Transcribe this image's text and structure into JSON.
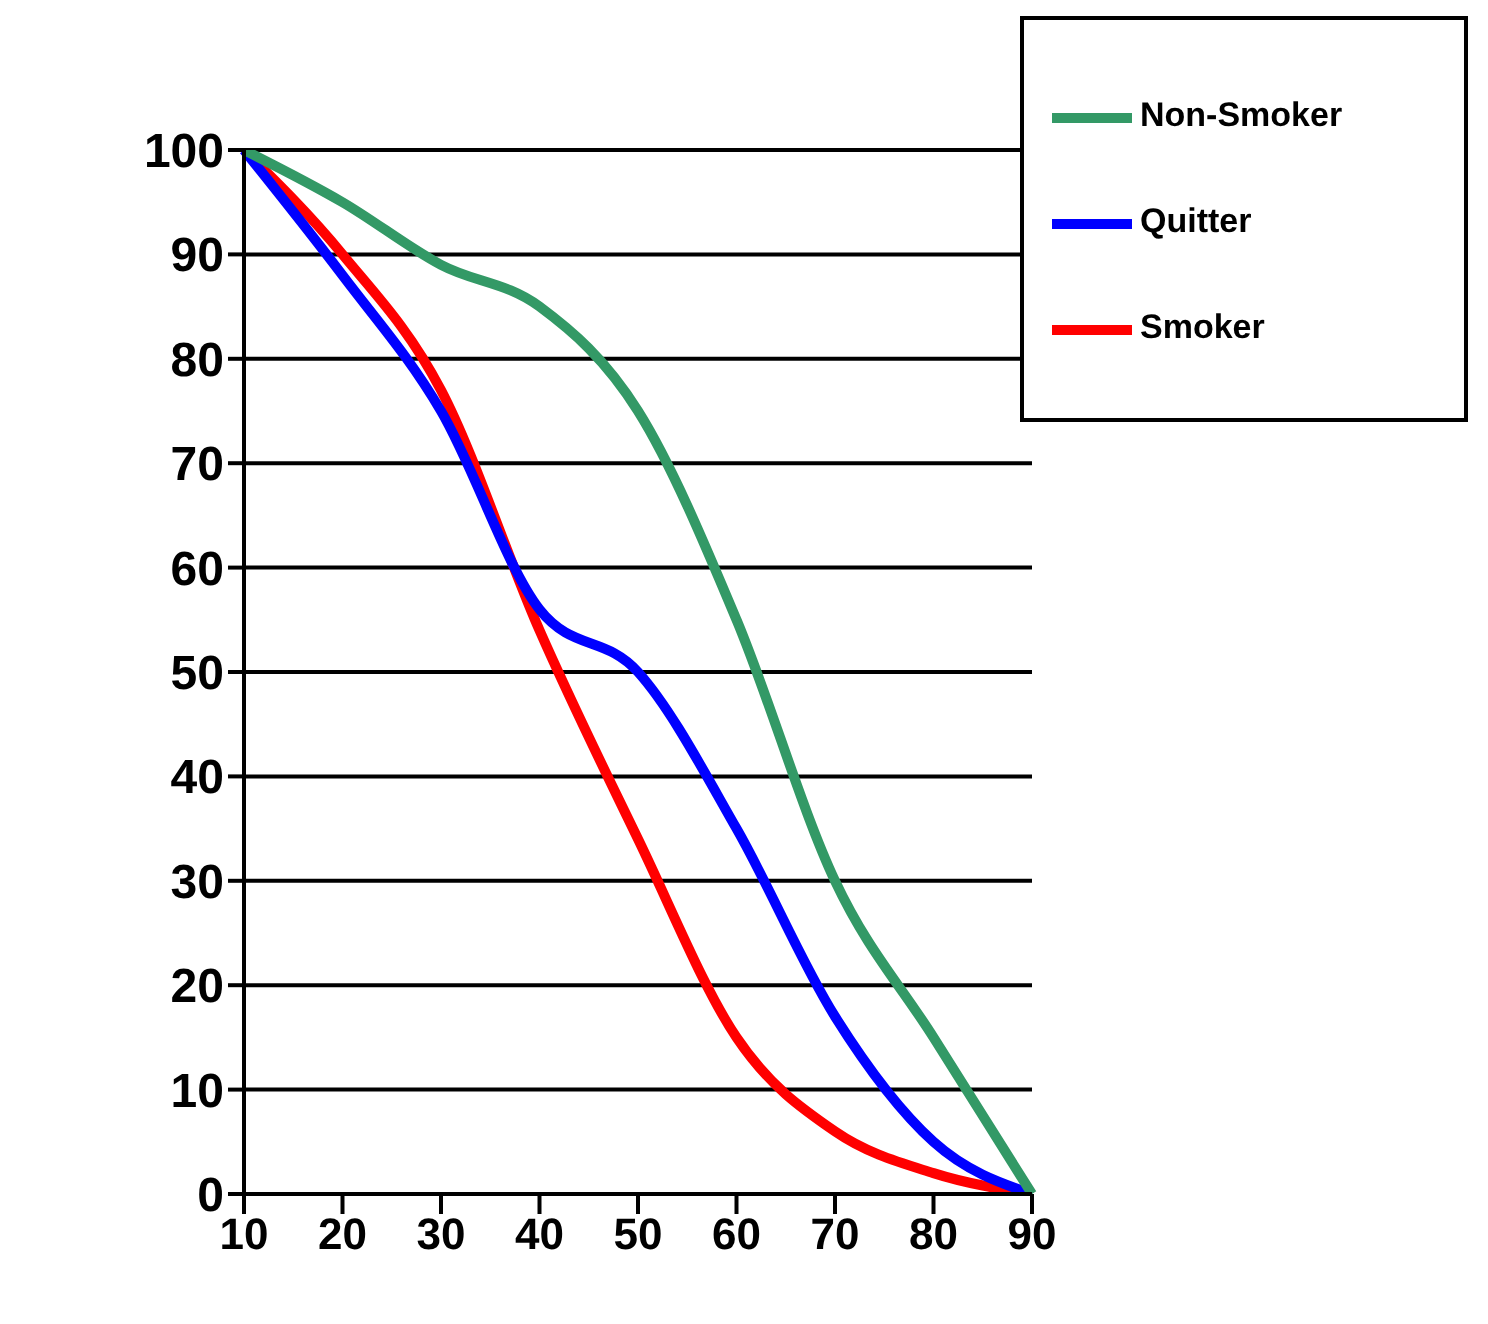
{
  "chart_data": {
    "type": "line",
    "categories": [
      "10",
      "20",
      "30",
      "40",
      "50",
      "60",
      "70",
      "80",
      "90"
    ],
    "series": [
      {
        "name": "Smoker",
        "color": "#ff0000",
        "values": [
          100,
          90,
          77,
          54,
          34,
          15,
          6,
          2,
          0
        ]
      },
      {
        "name": "Quitter",
        "color": "#0000ff",
        "values": [
          100,
          88,
          75,
          56,
          50,
          35,
          17,
          5,
          0
        ]
      },
      {
        "name": "Non-Smoker",
        "color": "#339966",
        "values": [
          100,
          95,
          89,
          85,
          75,
          55,
          30,
          15,
          0
        ]
      }
    ],
    "ylim": [
      0,
      100
    ],
    "yticks": [
      0,
      10,
      20,
      30,
      40,
      50,
      60,
      70,
      80,
      90,
      100
    ],
    "grid": "y",
    "legend": "top right",
    "marker": "none",
    "line_style": "solid"
  }
}
